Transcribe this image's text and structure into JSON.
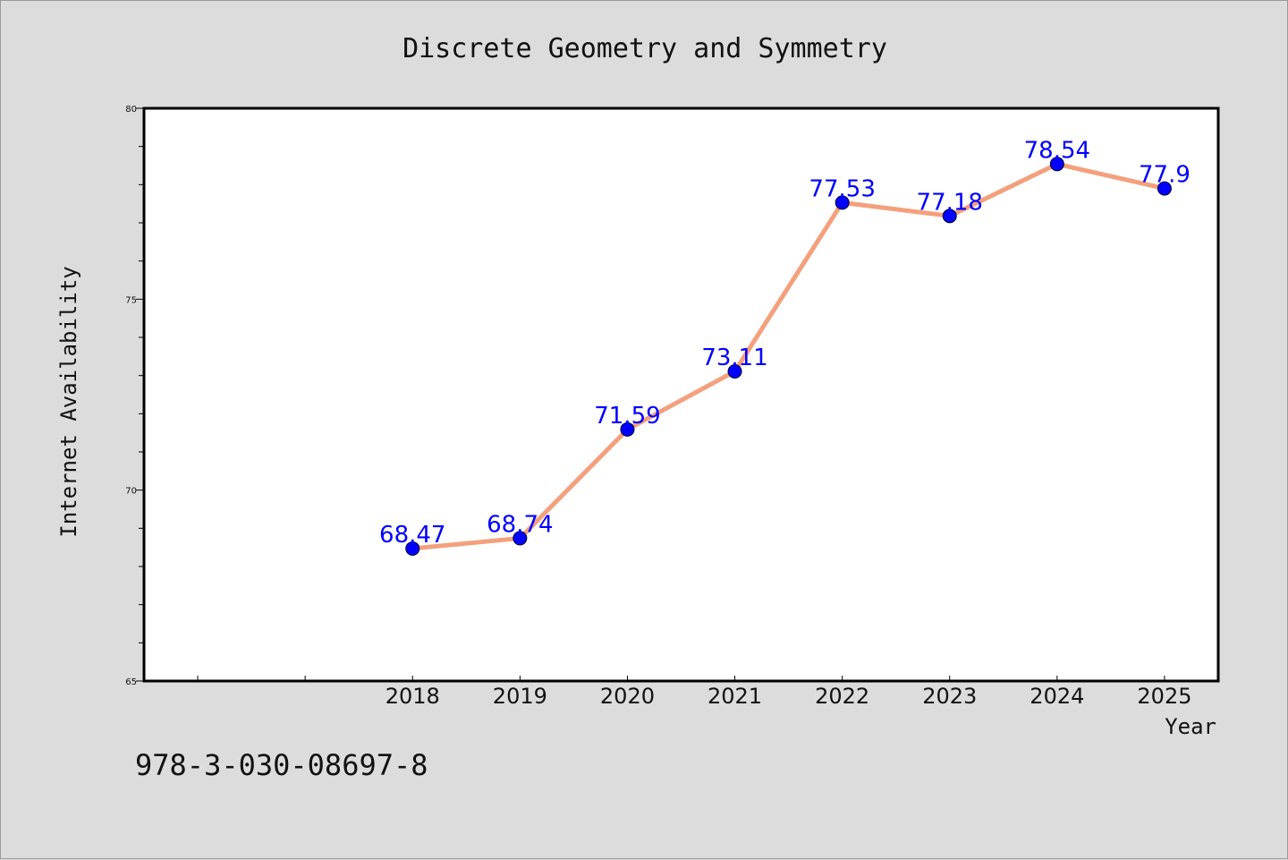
{
  "chart_data": {
    "type": "line",
    "title": "Discrete Geometry and Symmetry",
    "xlabel": "Year",
    "ylabel": "Internet Availability",
    "x": [
      "2018",
      "2019",
      "2020",
      "2021",
      "2022",
      "2023",
      "2024",
      "2025"
    ],
    "values": [
      68.47,
      68.74,
      71.59,
      73.11,
      77.53,
      77.18,
      78.54,
      77.9
    ],
    "data_labels": [
      "68.47",
      "68.74",
      "71.59",
      "73.11",
      "77.53",
      "77.18",
      "78.54",
      "77.9"
    ],
    "ylim": [
      65,
      80
    ],
    "xlim": [
      2015.5,
      2025.5
    ],
    "y_ticks": [
      65,
      70,
      75,
      80
    ],
    "y_tick_labels": [
      "65",
      "70",
      "75",
      "80"
    ],
    "grid": false,
    "legend": "none",
    "colors": {
      "line": "#f4a07c",
      "marker": "#0000ff",
      "label": "#0000ff",
      "background": "#dcdcdc",
      "plot_area": "#ffffff"
    }
  },
  "footer": {
    "isbn": "978-3-030-08697-8"
  }
}
